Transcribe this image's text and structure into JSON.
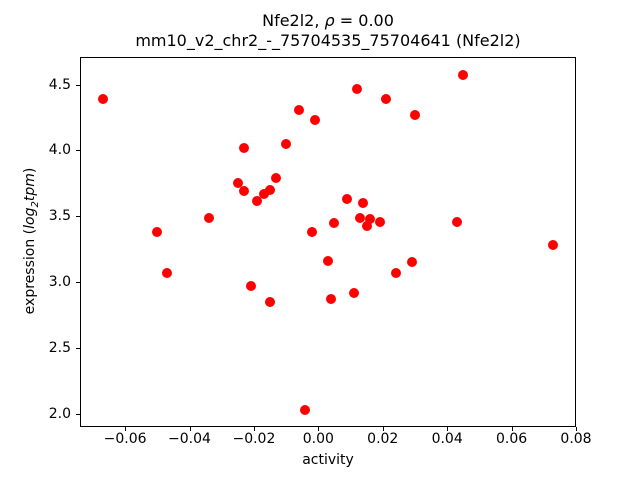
{
  "title": {
    "prefix": "Nfe2l2, ",
    "rho": "ρ",
    "suffix": " = 0.00",
    "line2": "mm10_v2_chr2_-_75704535_75704641 (Nfe2l2)"
  },
  "ylabel_parts": {
    "prefix": "expression (",
    "log": "log",
    "sub": "2",
    "tpm": "tpm",
    "suffix": ")"
  },
  "chart_data": {
    "type": "scatter",
    "title": "Nfe2l2, ρ = 0.00",
    "subtitle": "mm10_v2_chr2_-_75704535_75704641 (Nfe2l2)",
    "xlabel": "activity",
    "ylabel": "expression (log2tpm)",
    "marker_color": "#ff0000",
    "marker_shape": "circle",
    "grid": false,
    "legend": "none",
    "xlim": [
      -0.074,
      0.08
    ],
    "ylim": [
      1.9,
      4.71
    ],
    "x_ticks": [
      -0.06,
      -0.04,
      -0.02,
      0.0,
      0.02,
      0.04,
      0.06,
      0.08
    ],
    "y_ticks": [
      2.0,
      2.5,
      3.0,
      3.5,
      4.0,
      4.5
    ],
    "points": [
      [
        -0.067,
        4.39
      ],
      [
        -0.05,
        3.38
      ],
      [
        -0.047,
        3.07
      ],
      [
        -0.034,
        3.49
      ],
      [
        -0.025,
        3.75
      ],
      [
        -0.023,
        4.02
      ],
      [
        -0.023,
        3.69
      ],
      [
        -0.021,
        2.97
      ],
      [
        -0.019,
        3.62
      ],
      [
        -0.017,
        3.67
      ],
      [
        -0.015,
        3.7
      ],
      [
        -0.015,
        2.85
      ],
      [
        -0.013,
        3.79
      ],
      [
        -0.01,
        4.05
      ],
      [
        -0.006,
        4.31
      ],
      [
        -0.004,
        2.03
      ],
      [
        -0.002,
        3.38
      ],
      [
        -0.001,
        4.23
      ],
      [
        0.003,
        3.16
      ],
      [
        0.004,
        2.87
      ],
      [
        0.005,
        3.45
      ],
      [
        0.009,
        3.63
      ],
      [
        0.011,
        2.92
      ],
      [
        0.012,
        4.47
      ],
      [
        0.013,
        3.49
      ],
      [
        0.014,
        3.6
      ],
      [
        0.015,
        3.43
      ],
      [
        0.016,
        3.48
      ],
      [
        0.019,
        3.46
      ],
      [
        0.021,
        4.39
      ],
      [
        0.024,
        3.07
      ],
      [
        0.029,
        3.15
      ],
      [
        0.03,
        4.27
      ],
      [
        0.043,
        3.46
      ],
      [
        0.045,
        4.57
      ],
      [
        0.073,
        3.28
      ]
    ]
  }
}
